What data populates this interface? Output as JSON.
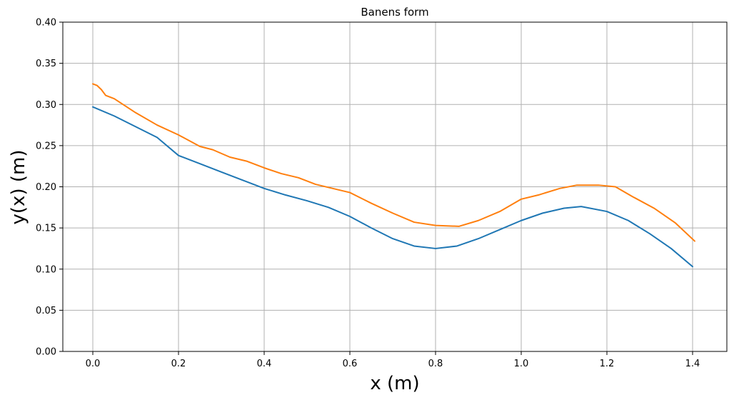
{
  "chart_data": {
    "type": "line",
    "title": "Banens form",
    "xlabel": "x (m)",
    "ylabel": "y(x) (m)",
    "xlim": [
      -0.07,
      1.48
    ],
    "ylim": [
      0.0,
      0.4
    ],
    "grid": true,
    "x_ticks": [
      0.0,
      0.2,
      0.4,
      0.6,
      0.8,
      1.0,
      1.2,
      1.4
    ],
    "x_tick_labels": [
      "0.0",
      "0.2",
      "0.4",
      "0.6",
      "0.8",
      "1.0",
      "1.2",
      "1.4"
    ],
    "y_ticks": [
      0.0,
      0.05,
      0.1,
      0.15,
      0.2,
      0.25,
      0.3,
      0.35,
      0.4
    ],
    "y_tick_labels": [
      "0.00",
      "0.05",
      "0.10",
      "0.15",
      "0.20",
      "0.25",
      "0.30",
      "0.35",
      "0.40"
    ],
    "series": [
      {
        "color": "#1f77b4",
        "points": [
          [
            0.0,
            0.297
          ],
          [
            0.05,
            0.286
          ],
          [
            0.1,
            0.273
          ],
          [
            0.15,
            0.26
          ],
          [
            0.2,
            0.238
          ],
          [
            0.25,
            0.228
          ],
          [
            0.3,
            0.218
          ],
          [
            0.35,
            0.208
          ],
          [
            0.4,
            0.198
          ],
          [
            0.45,
            0.19
          ],
          [
            0.5,
            0.183
          ],
          [
            0.55,
            0.175
          ],
          [
            0.6,
            0.164
          ],
          [
            0.65,
            0.15
          ],
          [
            0.7,
            0.137
          ],
          [
            0.75,
            0.128
          ],
          [
            0.8,
            0.125
          ],
          [
            0.85,
            0.128
          ],
          [
            0.9,
            0.137
          ],
          [
            0.95,
            0.148
          ],
          [
            1.0,
            0.159
          ],
          [
            1.05,
            0.168
          ],
          [
            1.1,
            0.174
          ],
          [
            1.14,
            0.176
          ],
          [
            1.2,
            0.17
          ],
          [
            1.25,
            0.159
          ],
          [
            1.3,
            0.143
          ],
          [
            1.35,
            0.125
          ],
          [
            1.4,
            0.103
          ]
        ]
      },
      {
        "color": "#ff7f0e",
        "points": [
          [
            0.0,
            0.325
          ],
          [
            0.01,
            0.323
          ],
          [
            0.02,
            0.318
          ],
          [
            0.03,
            0.311
          ],
          [
            0.05,
            0.307
          ],
          [
            0.1,
            0.29
          ],
          [
            0.15,
            0.275
          ],
          [
            0.2,
            0.263
          ],
          [
            0.25,
            0.249
          ],
          [
            0.28,
            0.245
          ],
          [
            0.32,
            0.236
          ],
          [
            0.36,
            0.231
          ],
          [
            0.4,
            0.223
          ],
          [
            0.44,
            0.216
          ],
          [
            0.48,
            0.211
          ],
          [
            0.52,
            0.203
          ],
          [
            0.56,
            0.198
          ],
          [
            0.6,
            0.193
          ],
          [
            0.65,
            0.18
          ],
          [
            0.7,
            0.168
          ],
          [
            0.75,
            0.157
          ],
          [
            0.8,
            0.153
          ],
          [
            0.855,
            0.152
          ],
          [
            0.9,
            0.159
          ],
          [
            0.95,
            0.17
          ],
          [
            1.0,
            0.185
          ],
          [
            1.04,
            0.19
          ],
          [
            1.09,
            0.198
          ],
          [
            1.13,
            0.202
          ],
          [
            1.18,
            0.202
          ],
          [
            1.22,
            0.2
          ],
          [
            1.26,
            0.188
          ],
          [
            1.31,
            0.174
          ],
          [
            1.36,
            0.156
          ],
          [
            1.405,
            0.134
          ]
        ]
      }
    ]
  }
}
